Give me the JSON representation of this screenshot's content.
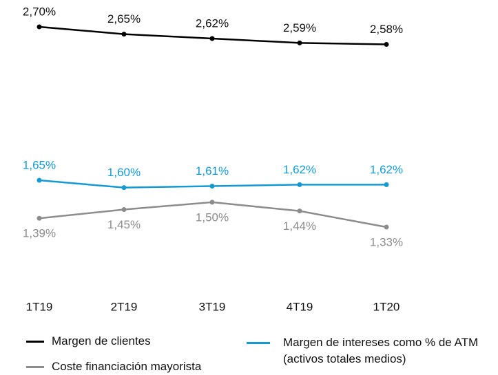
{
  "chart_data": {
    "type": "line",
    "categories": [
      "1T19",
      "2T19",
      "3T19",
      "4T19",
      "1T20"
    ],
    "series": [
      {
        "name": "Margen de clientes",
        "color": "#000000",
        "values": [
          2.7,
          2.65,
          2.62,
          2.59,
          2.58
        ],
        "value_labels": [
          "2,70%",
          "2,65%",
          "2,62%",
          "2,59%",
          "2,58%"
        ]
      },
      {
        "name": "Coste financiación mayorista",
        "color": "#8c8c8c",
        "values": [
          1.39,
          1.45,
          1.5,
          1.44,
          1.33
        ],
        "value_labels": [
          "1,39%",
          "1,45%",
          "1,50%",
          "1,44%",
          "1,33%"
        ]
      },
      {
        "name": "Margen de intereses como % de ATM (activos totales medios)",
        "color": "#1499d3",
        "values": [
          1.65,
          1.6,
          1.61,
          1.62,
          1.62
        ],
        "value_labels": [
          "1,65%",
          "1,60%",
          "1,61%",
          "1,62%",
          "1,62%"
        ]
      }
    ]
  }
}
